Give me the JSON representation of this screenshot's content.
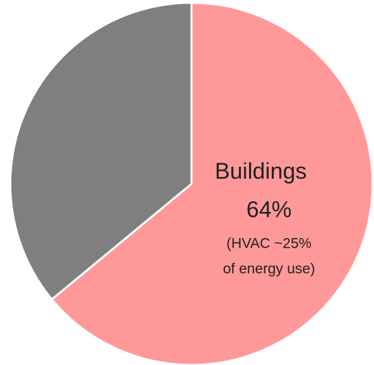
{
  "chart_data": {
    "type": "pie",
    "categories": [
      "Buildings",
      null
    ],
    "values": [
      64,
      36
    ],
    "value_labels": [
      "64%",
      null
    ],
    "colors": [
      "#ff9999",
      "#7f7f7f"
    ],
    "annotation": [
      "(HVAC ~25%",
      "of energy use)"
    ]
  }
}
